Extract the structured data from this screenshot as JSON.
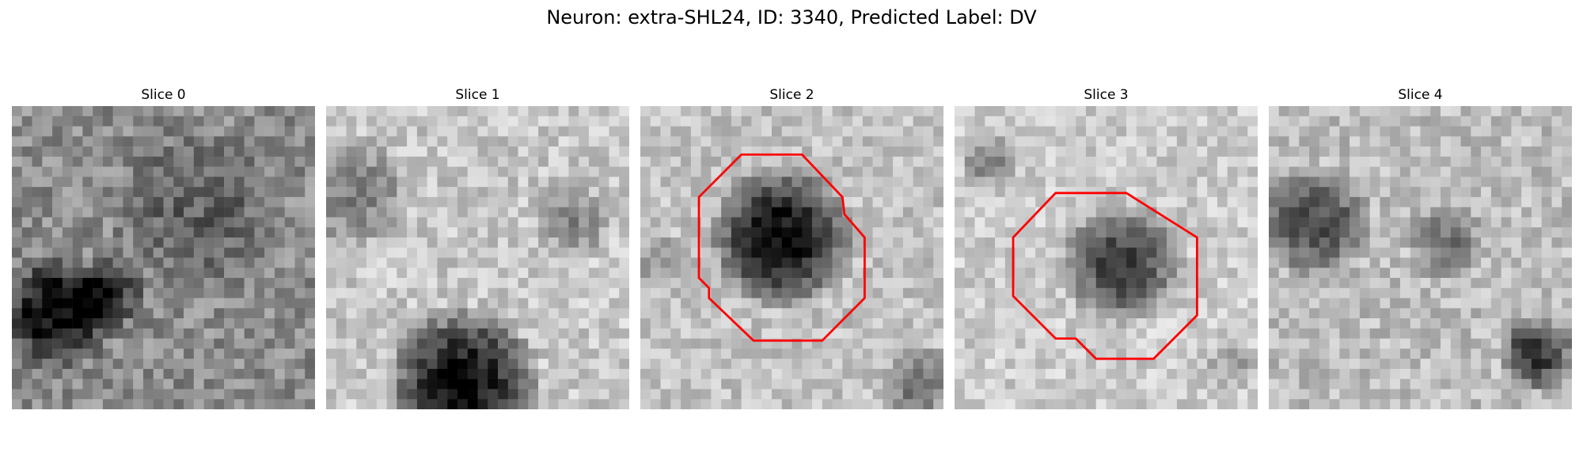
{
  "figure": {
    "title": "Neuron: extra-SHL24, ID: 3340, Predicted Label: DV"
  },
  "slices": [
    {
      "label": "Slice 0",
      "has_outline": false
    },
    {
      "label": "Slice 1",
      "has_outline": false
    },
    {
      "label": "Slice 2",
      "has_outline": true
    },
    {
      "label": "Slice 3",
      "has_outline": true
    },
    {
      "label": "Slice 4",
      "has_outline": false
    }
  ],
  "colors": {
    "outline": "#ff0000",
    "background": "#ffffff"
  }
}
